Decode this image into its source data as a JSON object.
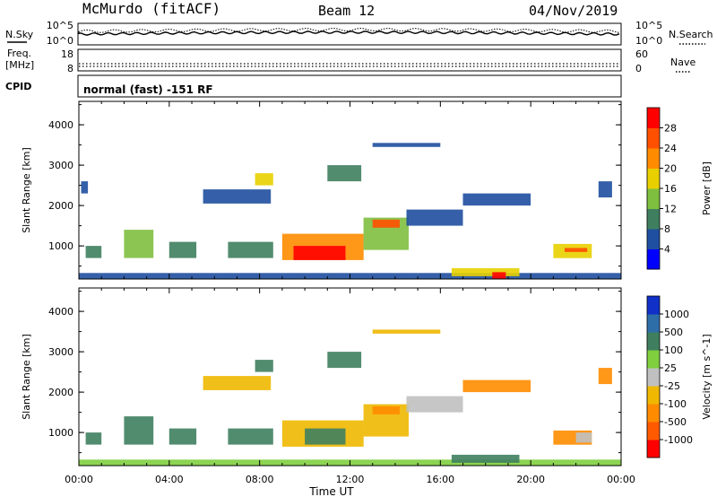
{
  "header": {
    "station": "McMurdo (fitACF)",
    "beam": "Beam 12",
    "date": "04/Nov/2019"
  },
  "top_panel": {
    "left_label": "N.Sky",
    "right_label": "N.Search",
    "left_ticks": [
      "10^5",
      "10^0"
    ],
    "right_ticks": [
      "10^5",
      "10^0"
    ]
  },
  "freq_panel": {
    "left_label_1": "Freq.",
    "left_label_2": "[MHz]",
    "right_label": "Nave",
    "left_ticks": [
      "18",
      "8"
    ],
    "right_ticks": [
      "60",
      "0"
    ]
  },
  "cpid_panel": {
    "label": "CPID",
    "text": "normal (fast) -151 RF"
  },
  "chart_data": [
    {
      "type": "heatmap",
      "ylabel": "Slant Range [km]",
      "xlabel": "Time UT",
      "x_ticks": [
        "00:00",
        "04:00",
        "08:00",
        "12:00",
        "16:00",
        "20:00",
        "00:00"
      ],
      "y_ticks": [
        "1000",
        "2000",
        "3000",
        "4000"
      ],
      "ylim": [
        180,
        4580
      ],
      "xlim": [
        0,
        24
      ],
      "colorbar": {
        "label": "Power [dB]",
        "ticks": [
          "4",
          "8",
          "12",
          "16",
          "20",
          "24",
          "28"
        ],
        "colors": [
          "#0000ff",
          "#1f4fa0",
          "#3f7f5f",
          "#7fbf3f",
          "#e8d000",
          "#ff8c00",
          "#ff5000",
          "#ff0000"
        ]
      },
      "patches": [
        {
          "t0": 0.0,
          "t1": 24.0,
          "r0": 180,
          "r1": 330,
          "level": 1
        },
        {
          "t0": 0.3,
          "t1": 1.0,
          "r0": 700,
          "r1": 1000,
          "level": 2
        },
        {
          "t0": 0.1,
          "t1": 0.4,
          "r0": 2300,
          "r1": 2600,
          "level": 1
        },
        {
          "t0": 2.0,
          "t1": 3.3,
          "r0": 700,
          "r1": 1400,
          "level": 3
        },
        {
          "t0": 4.0,
          "t1": 5.2,
          "r0": 700,
          "r1": 1100,
          "level": 2
        },
        {
          "t0": 5.5,
          "t1": 8.5,
          "r0": 2050,
          "r1": 2400,
          "level": 1
        },
        {
          "t0": 7.8,
          "t1": 8.6,
          "r0": 2500,
          "r1": 2800,
          "level": 4
        },
        {
          "t0": 6.6,
          "t1": 8.6,
          "r0": 700,
          "r1": 1100,
          "level": 2
        },
        {
          "t0": 9.0,
          "t1": 12.6,
          "r0": 650,
          "r1": 1300,
          "level": 5
        },
        {
          "t0": 9.5,
          "t1": 11.8,
          "r0": 650,
          "r1": 1000,
          "level": 7
        },
        {
          "t0": 12.6,
          "t1": 14.6,
          "r0": 900,
          "r1": 1700,
          "level": 3
        },
        {
          "t0": 13.0,
          "t1": 14.2,
          "r0": 1450,
          "r1": 1650,
          "level": 6
        },
        {
          "t0": 11.0,
          "t1": 12.5,
          "r0": 2600,
          "r1": 3000,
          "level": 2
        },
        {
          "t0": 13.0,
          "t1": 16.0,
          "r0": 3450,
          "r1": 3550,
          "level": 1
        },
        {
          "t0": 14.5,
          "t1": 17.0,
          "r0": 1500,
          "r1": 1900,
          "level": 1
        },
        {
          "t0": 17.0,
          "t1": 20.0,
          "r0": 2000,
          "r1": 2300,
          "level": 1
        },
        {
          "t0": 16.5,
          "t1": 19.5,
          "r0": 250,
          "r1": 450,
          "level": 4
        },
        {
          "t0": 18.3,
          "t1": 18.9,
          "r0": 180,
          "r1": 350,
          "level": 7
        },
        {
          "t0": 21.0,
          "t1": 22.7,
          "r0": 700,
          "r1": 1050,
          "level": 4
        },
        {
          "t0": 21.5,
          "t1": 22.5,
          "r0": 850,
          "r1": 950,
          "level": 6
        },
        {
          "t0": 23.0,
          "t1": 23.6,
          "r0": 2200,
          "r1": 2600,
          "level": 1
        }
      ]
    },
    {
      "type": "heatmap",
      "ylabel": "Slant Range [km]",
      "xlabel": "Time UT",
      "x_ticks": [
        "00:00",
        "04:00",
        "08:00",
        "12:00",
        "16:00",
        "20:00",
        "00:00"
      ],
      "y_ticks": [
        "1000",
        "2000",
        "3000",
        "4000"
      ],
      "ylim": [
        180,
        4580
      ],
      "xlim": [
        0,
        24
      ],
      "colorbar": {
        "label": "Velocity [m s^-1]",
        "ticks": [
          "1000",
          "500",
          "100",
          "25",
          "-25",
          "-100",
          "-500",
          "-1000"
        ],
        "colors": [
          "#1030c8",
          "#2e6ea8",
          "#3f7f5f",
          "#7fcf3f",
          "#c0c0c0",
          "#f0b800",
          "#ff8c00",
          "#ff5a00",
          "#ff0000"
        ]
      },
      "patches": [
        {
          "t0": 0.0,
          "t1": 24.0,
          "r0": 180,
          "r1": 330,
          "level": 3
        },
        {
          "t0": 0.3,
          "t1": 1.0,
          "r0": 700,
          "r1": 1000,
          "level": 2
        },
        {
          "t0": 2.0,
          "t1": 3.3,
          "r0": 700,
          "r1": 1400,
          "level": 2
        },
        {
          "t0": 4.0,
          "t1": 5.2,
          "r0": 700,
          "r1": 1100,
          "level": 2
        },
        {
          "t0": 5.5,
          "t1": 8.5,
          "r0": 2050,
          "r1": 2400,
          "level": 5
        },
        {
          "t0": 7.8,
          "t1": 8.6,
          "r0": 2500,
          "r1": 2800,
          "level": 2
        },
        {
          "t0": 6.6,
          "t1": 8.6,
          "r0": 700,
          "r1": 1100,
          "level": 2
        },
        {
          "t0": 9.0,
          "t1": 12.6,
          "r0": 650,
          "r1": 1300,
          "level": 5
        },
        {
          "t0": 10.0,
          "t1": 11.8,
          "r0": 700,
          "r1": 1100,
          "level": 2
        },
        {
          "t0": 12.6,
          "t1": 14.6,
          "r0": 900,
          "r1": 1700,
          "level": 5
        },
        {
          "t0": 13.0,
          "t1": 14.2,
          "r0": 1450,
          "r1": 1650,
          "level": 6
        },
        {
          "t0": 11.0,
          "t1": 12.5,
          "r0": 2600,
          "r1": 3000,
          "level": 2
        },
        {
          "t0": 13.0,
          "t1": 16.0,
          "r0": 3450,
          "r1": 3550,
          "level": 5
        },
        {
          "t0": 14.5,
          "t1": 17.0,
          "r0": 1500,
          "r1": 1900,
          "level": 4
        },
        {
          "t0": 17.0,
          "t1": 20.0,
          "r0": 2000,
          "r1": 2300,
          "level": 6
        },
        {
          "t0": 16.5,
          "t1": 19.5,
          "r0": 250,
          "r1": 450,
          "level": 2
        },
        {
          "t0": 21.0,
          "t1": 22.7,
          "r0": 700,
          "r1": 1050,
          "level": 6
        },
        {
          "t0": 22.0,
          "t1": 22.7,
          "r0": 750,
          "r1": 1000,
          "level": 4
        },
        {
          "t0": 23.0,
          "t1": 23.6,
          "r0": 2200,
          "r1": 2600,
          "level": 6
        }
      ]
    }
  ]
}
